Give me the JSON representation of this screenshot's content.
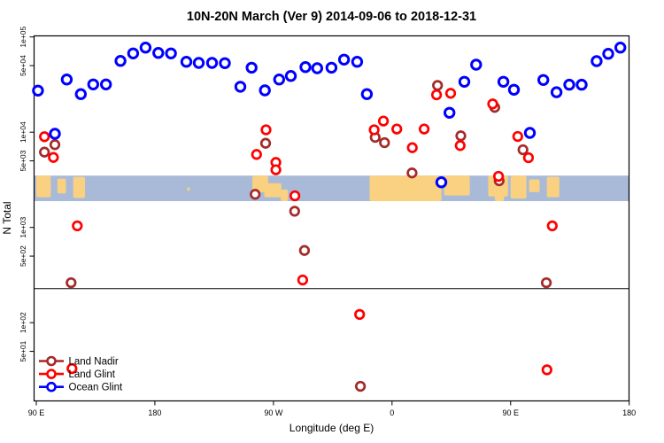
{
  "chart_data": {
    "type": "scatter",
    "title": "10N-20N March (Ver 9)   2014-09-06 to 2018-12-31",
    "xlabel": "Longitude (deg E)",
    "ylabel": "N Total",
    "x_axis": {
      "unit": "degrees East, continuous 90 to 540 (wraps through 180, 90W, 0, 90E, 180)",
      "range": [
        90,
        540
      ],
      "ticks": [
        {
          "lon": 90,
          "label": "90 E"
        },
        {
          "lon": 180,
          "label": "180"
        },
        {
          "lon": 270,
          "label": "90 W"
        },
        {
          "lon": 360,
          "label": "0"
        },
        {
          "lon": 450,
          "label": "90 E"
        },
        {
          "lon": 540,
          "label": "180"
        }
      ]
    },
    "y_axis": {
      "scale": "log10",
      "range": [
        15,
        100000
      ],
      "ticks": [
        {
          "value": 100000,
          "label": "1e+05"
        },
        {
          "value": 50000,
          "label": "5e+04"
        },
        {
          "value": 10000,
          "label": "1e+04"
        },
        {
          "value": 5000,
          "label": "5e+03"
        },
        {
          "value": 1000,
          "label": "1e+03"
        },
        {
          "value": 500,
          "label": "5e+02"
        },
        {
          "value": 100,
          "label": "1e+02"
        },
        {
          "value": 50,
          "label": "5e+01"
        }
      ]
    },
    "reference_line": {
      "value": 228
    },
    "map_strip": {
      "description": "10N-20N latitude band of world map overlaid on plot",
      "value_top": 3500,
      "value_bottom": 1890,
      "ocean_color": "#A9BAD8",
      "land_color": "#F9D180",
      "land_segments": [
        {
          "from": 90,
          "to": 101,
          "top": 0,
          "bottom": 0.15
        },
        {
          "from": 106,
          "to": 112.5,
          "top": 0.12,
          "bottom": 0.3
        },
        {
          "from": 118,
          "to": 127,
          "top": 0.05,
          "bottom": 0.12
        },
        {
          "from": 204.5,
          "to": 206.5,
          "top": 0.45,
          "bottom": 0.4
        },
        {
          "from": 254,
          "to": 266,
          "top": 0,
          "bottom": 0.35
        },
        {
          "from": 263,
          "to": 276,
          "top": 0.3,
          "bottom": 0.15
        },
        {
          "from": 275.5,
          "to": 281,
          "top": 0.55,
          "bottom": 0
        },
        {
          "from": 343,
          "to": 397.5,
          "top": 0,
          "bottom": 0
        },
        {
          "from": 399.5,
          "to": 419,
          "top": 0,
          "bottom": 0.22
        },
        {
          "from": 433,
          "to": 448,
          "top": 0,
          "bottom": 0.18
        },
        {
          "from": 438,
          "to": 445,
          "top": 0,
          "bottom": 0
        },
        {
          "from": 450,
          "to": 462,
          "top": 0,
          "bottom": 0.1
        },
        {
          "from": 464,
          "to": 472,
          "top": 0.15,
          "bottom": 0.35
        },
        {
          "from": 477.5,
          "to": 487,
          "top": 0.05,
          "bottom": 0.15
        }
      ]
    },
    "legend": {
      "position": "bottom-left",
      "items": [
        {
          "label": "Land Nadir",
          "color": "#A52A2A"
        },
        {
          "label": "Land Glint",
          "color": "#FF0000"
        },
        {
          "label": "Ocean Glint",
          "color": "#0000FF"
        }
      ]
    },
    "series": [
      {
        "name": "Land Nadir",
        "color": "#A52A2A",
        "marker": "open-circle",
        "points": [
          {
            "lon": 96.2,
            "n": 6180
          },
          {
            "lon": 104.1,
            "n": 7390
          },
          {
            "lon": 116.4,
            "n": 263
          },
          {
            "lon": 256.1,
            "n": 2230
          },
          {
            "lon": 264.0,
            "n": 7650
          },
          {
            "lon": 286.1,
            "n": 1480
          },
          {
            "lon": 293.5,
            "n": 573
          },
          {
            "lon": 336.0,
            "n": 21.5
          },
          {
            "lon": 347.2,
            "n": 8830
          },
          {
            "lon": 354.3,
            "n": 7770
          },
          {
            "lon": 375.2,
            "n": 3730
          },
          {
            "lon": 394.5,
            "n": 31000
          },
          {
            "lon": 412.2,
            "n": 9160
          },
          {
            "lon": 437.9,
            "n": 18200
          },
          {
            "lon": 441.3,
            "n": 3090
          },
          {
            "lon": 459.4,
            "n": 6540
          },
          {
            "lon": 477.1,
            "n": 263
          }
        ]
      },
      {
        "name": "Land Glint",
        "color": "#FF0000",
        "marker": "open-circle",
        "points": [
          {
            "lon": 96.2,
            "n": 8970
          },
          {
            "lon": 103.0,
            "n": 5430
          },
          {
            "lon": 121.1,
            "n": 1040
          },
          {
            "lon": 117.1,
            "n": 33
          },
          {
            "lon": 257.2,
            "n": 5840
          },
          {
            "lon": 264.4,
            "n": 10600
          },
          {
            "lon": 271.8,
            "n": 4820
          },
          {
            "lon": 271.8,
            "n": 4030
          },
          {
            "lon": 286.3,
            "n": 2150
          },
          {
            "lon": 292.2,
            "n": 281
          },
          {
            "lon": 335.4,
            "n": 122
          },
          {
            "lon": 346.4,
            "n": 10600
          },
          {
            "lon": 353.5,
            "n": 13100
          },
          {
            "lon": 363.6,
            "n": 10800
          },
          {
            "lon": 375.4,
            "n": 6870
          },
          {
            "lon": 384.4,
            "n": 10800
          },
          {
            "lon": 393.8,
            "n": 24700
          },
          {
            "lon": 404.5,
            "n": 25600
          },
          {
            "lon": 411.7,
            "n": 7240
          },
          {
            "lon": 436.4,
            "n": 19800
          },
          {
            "lon": 440.8,
            "n": 3440
          },
          {
            "lon": 455.4,
            "n": 9020
          },
          {
            "lon": 463.5,
            "n": 5400
          },
          {
            "lon": 477.6,
            "n": 32
          },
          {
            "lon": 481.6,
            "n": 1040
          }
        ]
      },
      {
        "name": "Ocean Glint",
        "color": "#0000FF",
        "marker": "open-circle",
        "points": [
          {
            "lon": 91.3,
            "n": 27300
          },
          {
            "lon": 104.1,
            "n": 9620
          },
          {
            "lon": 113.1,
            "n": 35800
          },
          {
            "lon": 123.8,
            "n": 25100
          },
          {
            "lon": 133.2,
            "n": 31700
          },
          {
            "lon": 142.9,
            "n": 31700
          },
          {
            "lon": 153.9,
            "n": 56100
          },
          {
            "lon": 163.5,
            "n": 67100
          },
          {
            "lon": 172.9,
            "n": 77300
          },
          {
            "lon": 182.6,
            "n": 68000
          },
          {
            "lon": 192.2,
            "n": 67100
          },
          {
            "lon": 203.9,
            "n": 54900
          },
          {
            "lon": 213.3,
            "n": 53400
          },
          {
            "lon": 223.4,
            "n": 53400
          },
          {
            "lon": 233.1,
            "n": 53000
          },
          {
            "lon": 244.9,
            "n": 30000
          },
          {
            "lon": 253.4,
            "n": 47600
          },
          {
            "lon": 263.5,
            "n": 27500
          },
          {
            "lon": 274.3,
            "n": 35800
          },
          {
            "lon": 283.2,
            "n": 39000
          },
          {
            "lon": 294.3,
            "n": 48300
          },
          {
            "lon": 303.2,
            "n": 46900
          },
          {
            "lon": 314.0,
            "n": 47600
          },
          {
            "lon": 323.6,
            "n": 57800
          },
          {
            "lon": 333.5,
            "n": 54900
          },
          {
            "lon": 340.9,
            "n": 25100
          },
          {
            "lon": 397.4,
            "n": 2980
          },
          {
            "lon": 403.6,
            "n": 16000
          },
          {
            "lon": 414.9,
            "n": 33800
          },
          {
            "lon": 423.8,
            "n": 51200
          },
          {
            "lon": 444.5,
            "n": 33800
          },
          {
            "lon": 452.5,
            "n": 27900
          },
          {
            "lon": 464.6,
            "n": 9830
          },
          {
            "lon": 474.8,
            "n": 35300
          },
          {
            "lon": 484.8,
            "n": 26300
          },
          {
            "lon": 494.5,
            "n": 31500
          },
          {
            "lon": 503.9,
            "n": 31500
          },
          {
            "lon": 515.3,
            "n": 55700
          },
          {
            "lon": 524.1,
            "n": 66600
          },
          {
            "lon": 533.3,
            "n": 77300
          }
        ]
      }
    ]
  }
}
